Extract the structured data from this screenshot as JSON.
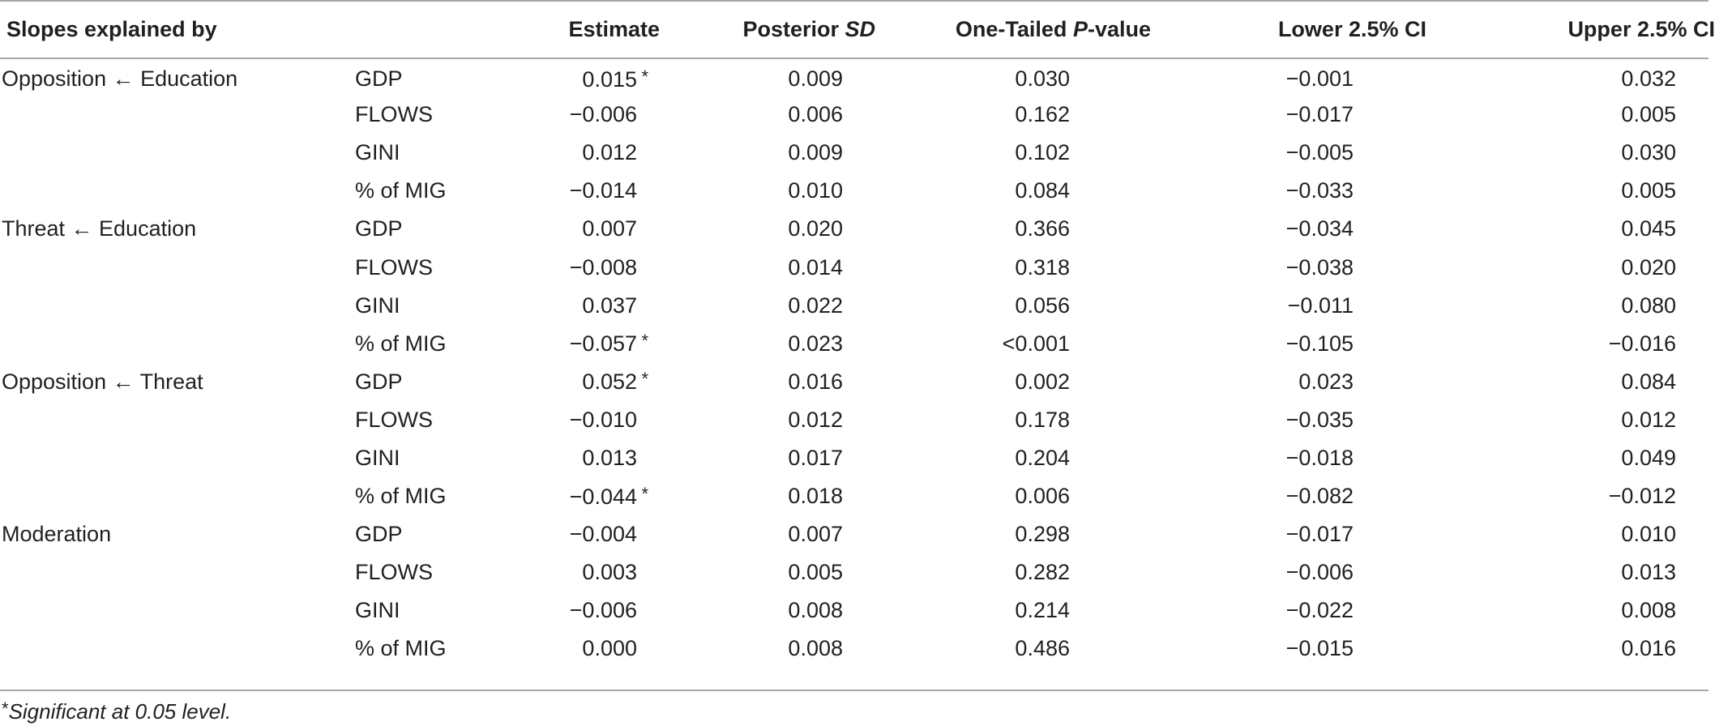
{
  "table": {
    "headers": {
      "group": "Slopes explained by",
      "variable": "",
      "estimate": "Estimate",
      "sd_prefix": "Posterior ",
      "sd_italic": "SD",
      "p_prefix": "One-Tailed ",
      "p_italic": "P",
      "p_suffix": "-value",
      "lower": "Lower 2.5% CI",
      "upper": "Upper 2.5% CI"
    },
    "rows": [
      {
        "group": "Opposition ← Education",
        "variable": "GDP",
        "estimate": "0.015",
        "star": "*",
        "sd": "0.009",
        "p": "0.030",
        "lower": "−0.001",
        "upper": "0.032"
      },
      {
        "group": "",
        "variable": "FLOWS",
        "estimate": "−0.006",
        "star": "",
        "sd": "0.006",
        "p": "0.162",
        "lower": "−0.017",
        "upper": "0.005"
      },
      {
        "group": "",
        "variable": "GINI",
        "estimate": "0.012",
        "star": "",
        "sd": "0.009",
        "p": "0.102",
        "lower": "−0.005",
        "upper": "0.030"
      },
      {
        "group": "",
        "variable": "% of MIG",
        "estimate": "−0.014",
        "star": "",
        "sd": "0.010",
        "p": "0.084",
        "lower": "−0.033",
        "upper": "0.005"
      },
      {
        "group": "Threat ← Education",
        "variable": "GDP",
        "estimate": "0.007",
        "star": "",
        "sd": "0.020",
        "p": "0.366",
        "lower": "−0.034",
        "upper": "0.045"
      },
      {
        "group": "",
        "variable": "FLOWS",
        "estimate": "−0.008",
        "star": "",
        "sd": "0.014",
        "p": "0.318",
        "lower": "−0.038",
        "upper": "0.020"
      },
      {
        "group": "",
        "variable": "GINI",
        "estimate": "0.037",
        "star": "",
        "sd": "0.022",
        "p": "0.056",
        "lower": "−0.011",
        "upper": "0.080"
      },
      {
        "group": "",
        "variable": "% of MIG",
        "estimate": "−0.057",
        "star": "*",
        "sd": "0.023",
        "p": "<0.001",
        "lower": "−0.105",
        "upper": "−0.016"
      },
      {
        "group": "Opposition ← Threat",
        "variable": "GDP",
        "estimate": "0.052",
        "star": "*",
        "sd": "0.016",
        "p": "0.002",
        "lower": "0.023",
        "upper": "0.084"
      },
      {
        "group": "",
        "variable": "FLOWS",
        "estimate": "−0.010",
        "star": "",
        "sd": "0.012",
        "p": "0.178",
        "lower": "−0.035",
        "upper": "0.012"
      },
      {
        "group": "",
        "variable": "GINI",
        "estimate": "0.013",
        "star": "",
        "sd": "0.017",
        "p": "0.204",
        "lower": "−0.018",
        "upper": "0.049"
      },
      {
        "group": "",
        "variable": "% of MIG",
        "estimate": "−0.044",
        "star": "*",
        "sd": "0.018",
        "p": "0.006",
        "lower": "−0.082",
        "upper": "−0.012"
      },
      {
        "group": "Moderation",
        "variable": "GDP",
        "estimate": "−0.004",
        "star": "",
        "sd": "0.007",
        "p": "0.298",
        "lower": "−0.017",
        "upper": "0.010"
      },
      {
        "group": "",
        "variable": "FLOWS",
        "estimate": "0.003",
        "star": "",
        "sd": "0.005",
        "p": "0.282",
        "lower": "−0.006",
        "upper": "0.013"
      },
      {
        "group": "",
        "variable": "GINI",
        "estimate": "−0.006",
        "star": "",
        "sd": "0.008",
        "p": "0.214",
        "lower": "−0.022",
        "upper": "0.008"
      },
      {
        "group": "",
        "variable": "% of MIG",
        "estimate": "0.000",
        "star": "",
        "sd": "0.008",
        "p": "0.486",
        "lower": "−0.015",
        "upper": "0.016"
      }
    ]
  },
  "footnote": {
    "mark": "*",
    "text": "Significant at 0.05 level."
  }
}
